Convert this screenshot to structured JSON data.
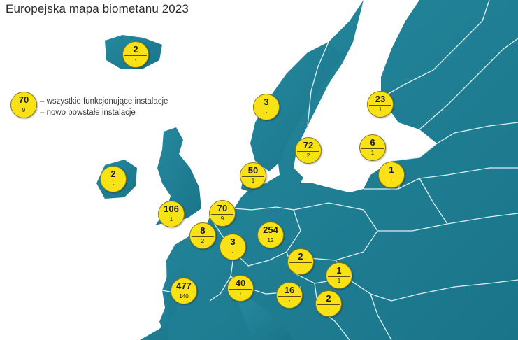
{
  "title": "Europejska mapa biometanu 2023",
  "legend": {
    "sample_total": "70",
    "sample_new": "9",
    "total_text": "– wszystkie funkcjonujące instalacje",
    "new_text": "– nowo powstałe instalacje"
  },
  "colors": {
    "sea": "#ffffff",
    "land": "#1f8196",
    "badge": "#f8e216",
    "border": "#d9eef2"
  },
  "markers": [
    {
      "total": "2",
      "new": "-"
    },
    {
      "total": "3",
      "new": "-"
    },
    {
      "total": "23",
      "new": "1"
    },
    {
      "total": "72",
      "new": "2"
    },
    {
      "total": "6",
      "new": "1"
    },
    {
      "total": "1",
      "new": "-"
    },
    {
      "total": "2",
      "new": "-"
    },
    {
      "total": "50",
      "new": "1"
    },
    {
      "total": "106",
      "new": "1"
    },
    {
      "total": "70",
      "new": "9"
    },
    {
      "total": "8",
      "new": "2"
    },
    {
      "total": "254",
      "new": "12"
    },
    {
      "total": "3",
      "new": "-"
    },
    {
      "total": "2",
      "new": "-"
    },
    {
      "total": "1",
      "new": "1"
    },
    {
      "total": "477",
      "new": "140"
    },
    {
      "total": "40",
      "new": "-"
    },
    {
      "total": "16",
      "new": "-"
    },
    {
      "total": "2",
      "new": "-"
    }
  ]
}
